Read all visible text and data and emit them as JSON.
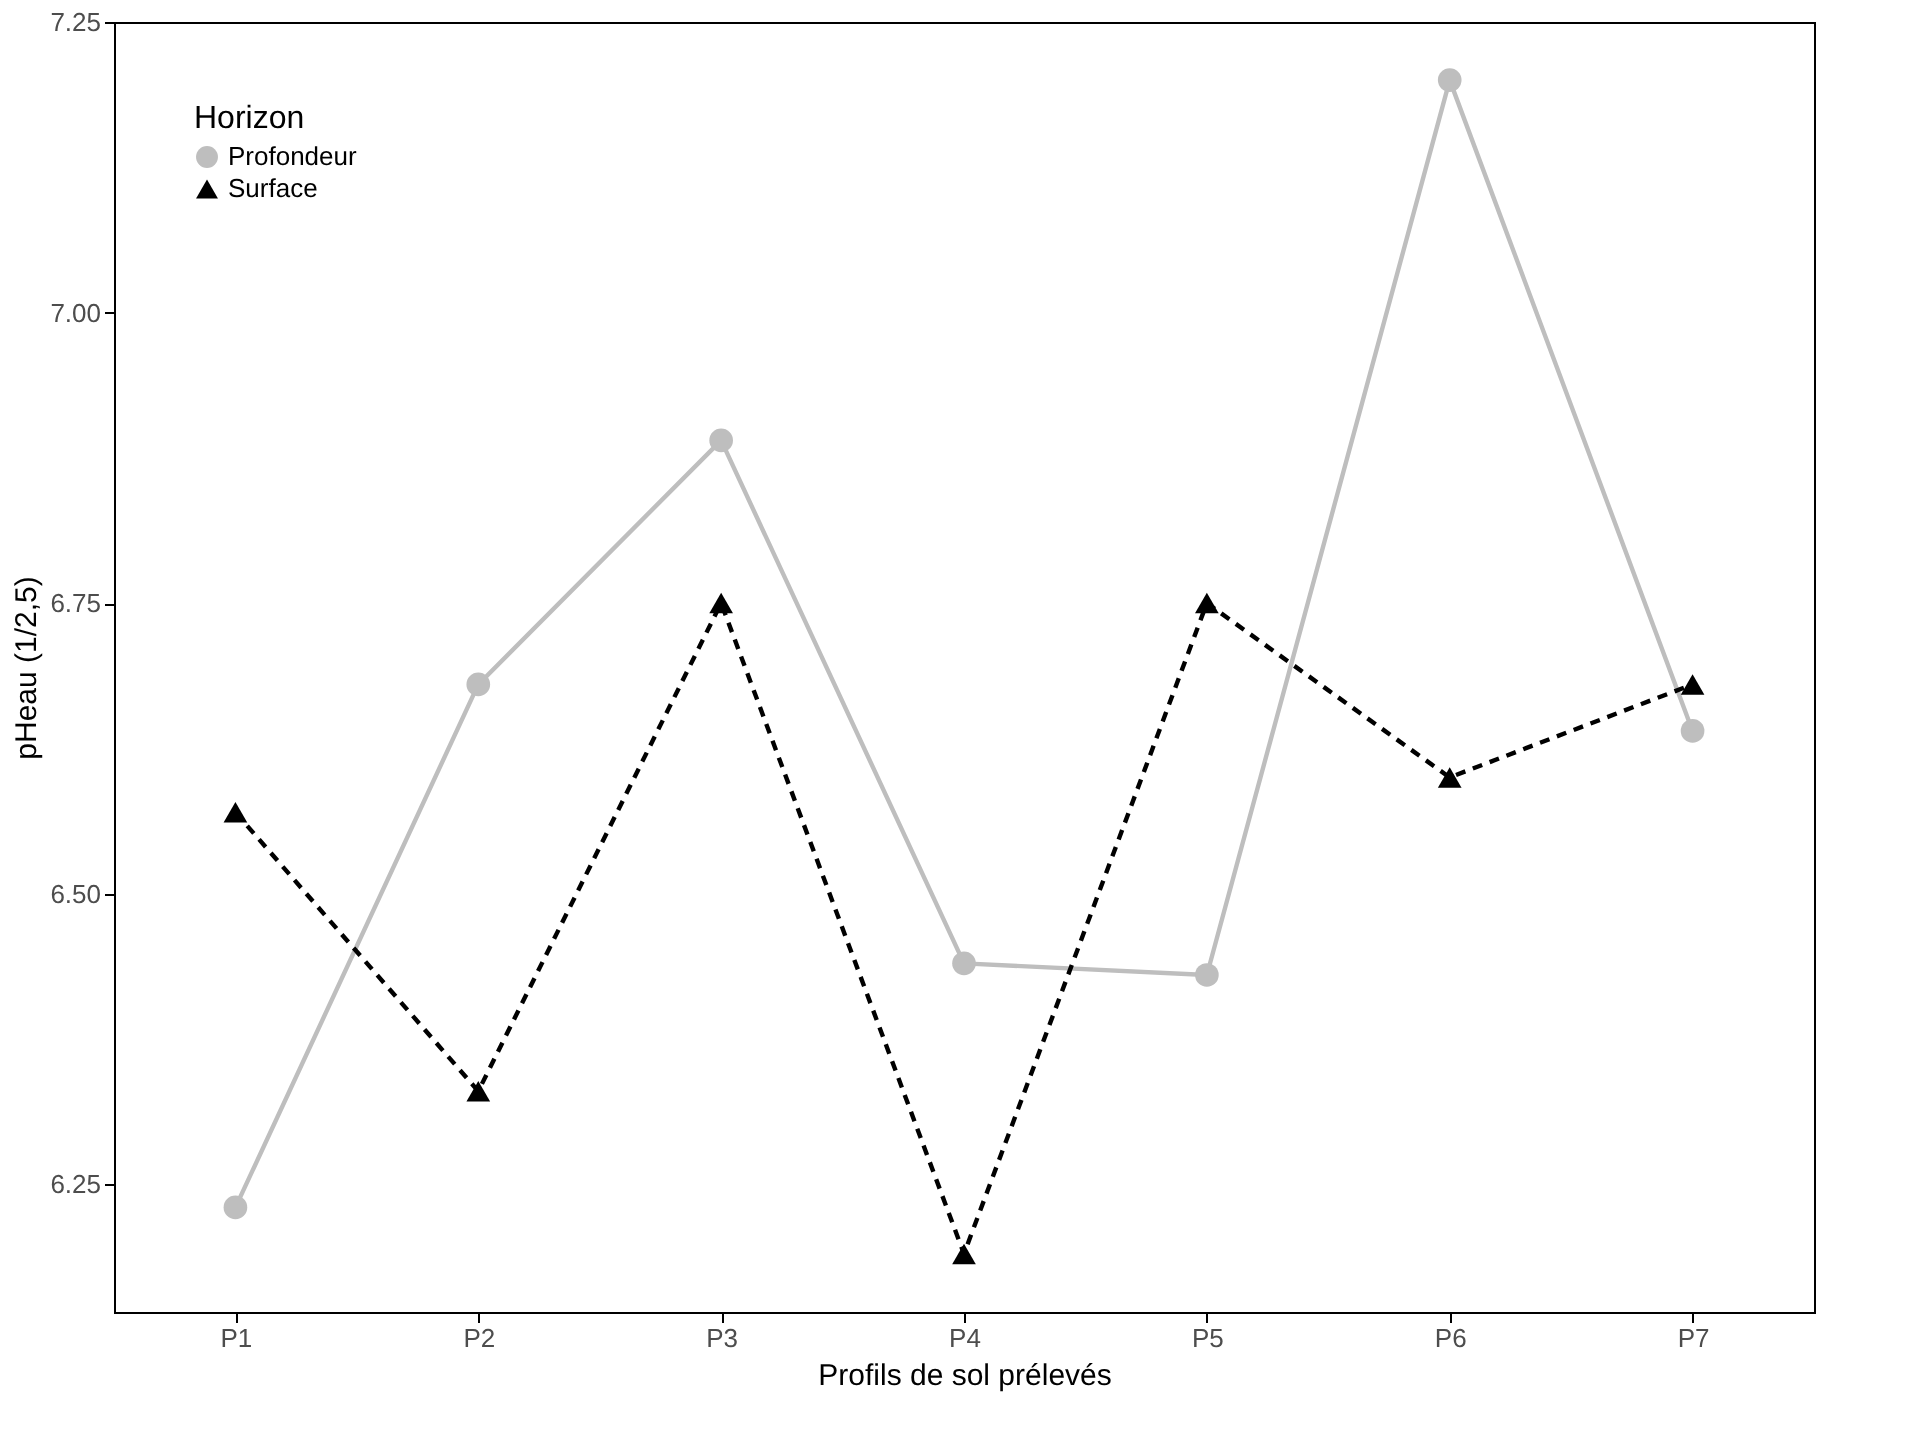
{
  "chart_data": {
    "type": "line",
    "xlabel": "Profils de sol prélevés",
    "ylabel": "pHeau (1/2,5)",
    "legend_title": "Horizon",
    "legend": "top left",
    "grid": false,
    "categories": [
      "P1",
      "P2",
      "P3",
      "P4",
      "P5",
      "P6",
      "P7"
    ],
    "ylim": [
      6.14,
      7.25
    ],
    "yticks": [
      {
        "value": 6.25,
        "label": "6.25"
      },
      {
        "value": 6.5,
        "label": "6.50"
      },
      {
        "value": 6.75,
        "label": "6.75"
      },
      {
        "value": 7.0,
        "label": "7.00"
      },
      {
        "value": 7.25,
        "label": "7.25"
      }
    ],
    "series": [
      {
        "name": "Profondeur",
        "color": "#bebebe",
        "marker": "circle",
        "line_style": "solid",
        "values": [
          6.23,
          6.68,
          6.89,
          6.44,
          6.43,
          7.2,
          6.64
        ]
      },
      {
        "name": "Surface",
        "color": "#000000",
        "marker": "triangle",
        "line_style": "dashed",
        "values": [
          6.57,
          6.33,
          6.75,
          6.19,
          6.75,
          6.6,
          6.68
        ]
      }
    ]
  }
}
